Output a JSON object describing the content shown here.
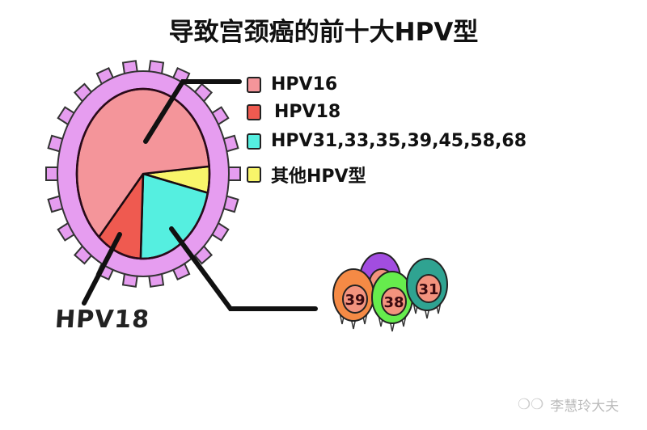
{
  "title": "导致宫颈癌的前十大HPV型",
  "chart_data": {
    "type": "pie",
    "title": "导致宫颈癌的前十大HPV型",
    "legend_position": "right",
    "slices": [
      {
        "name": "其他HPV型",
        "value": 5,
        "color": "#f8f56a"
      },
      {
        "name": "HPV31,33,35,39,45,58,68",
        "value": 22,
        "color": "#55efe0"
      },
      {
        "name": "HPV18",
        "value": 11,
        "color": "#ef5a50"
      },
      {
        "name": "HPV16",
        "value": 62,
        "color": "#f4959a"
      }
    ],
    "legend": [
      "HPV16",
      "HPV18",
      "HPV31,33,35,39,45,58,68",
      "其他HPV型"
    ],
    "annotations": [
      "HPV18"
    ]
  },
  "legend_colors": [
    "#f4959a",
    "#ef5a50",
    "#55efe0",
    "#f8f56a"
  ],
  "virus_labels": [
    "8",
    "39",
    "38",
    "31"
  ],
  "watermark": "李慧玲大夫",
  "watermark_icon": "wechat-icon"
}
